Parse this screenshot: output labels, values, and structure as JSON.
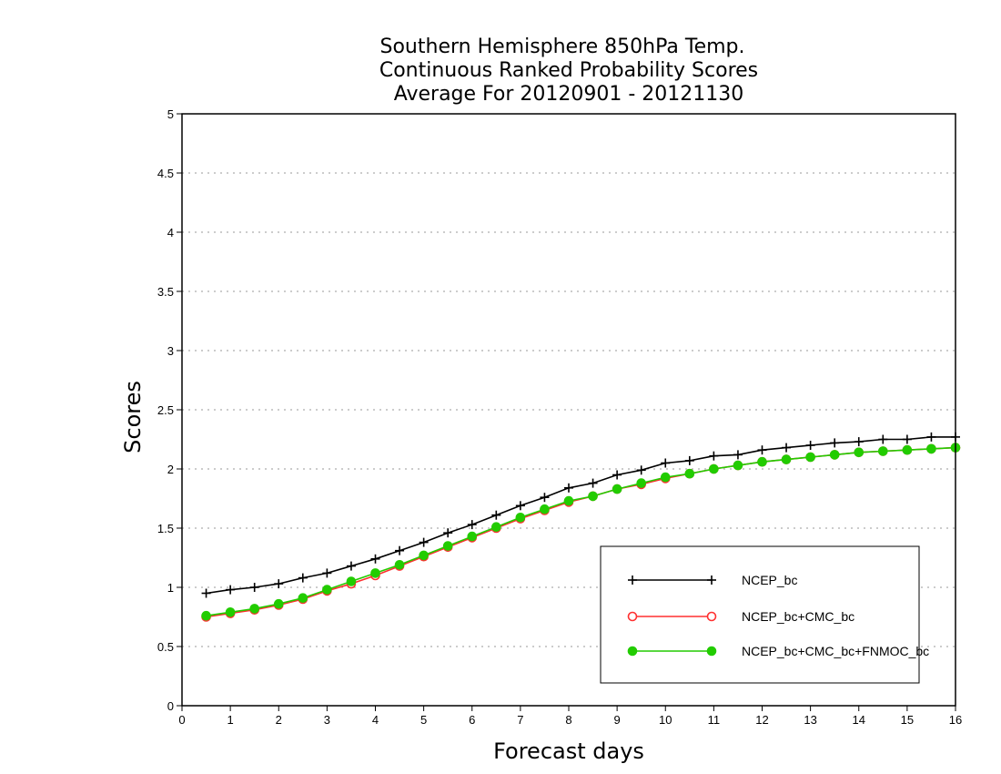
{
  "chart_data": {
    "type": "line",
    "title": [
      "Southern Hemisphere 850hPa Temp.",
      "Continuous Ranked Probability Scores",
      "Average For 20120901 - 20121130"
    ],
    "xlabel": "Forecast days",
    "ylabel": "Scores",
    "xlim": [
      0,
      16
    ],
    "ylim": [
      0,
      5
    ],
    "x_ticks": [
      "0",
      "1",
      "2",
      "3",
      "4",
      "5",
      "6",
      "7",
      "8",
      "9",
      "10",
      "11",
      "12",
      "13",
      "14",
      "15",
      "16"
    ],
    "y_ticks": [
      "0",
      "0.5",
      "1",
      "1.5",
      "2",
      "2.5",
      "3",
      "3.5",
      "4",
      "4.5",
      "5"
    ],
    "grid": "horizontal dotted",
    "legend_position": "bottom-right",
    "x": [
      0.5,
      1,
      1.5,
      2,
      2.5,
      3,
      3.5,
      4,
      4.5,
      5,
      5.5,
      6,
      6.5,
      7,
      7.5,
      8,
      8.5,
      9,
      9.5,
      10,
      10.5,
      11,
      11.5,
      12,
      12.5,
      13,
      13.5,
      14,
      14.5,
      15,
      15.5,
      16
    ],
    "series": [
      {
        "name": "NCEP_bc",
        "color": "#000000",
        "marker": "plus",
        "values": [
          0.95,
          0.98,
          1.0,
          1.03,
          1.08,
          1.12,
          1.18,
          1.24,
          1.31,
          1.38,
          1.46,
          1.53,
          1.61,
          1.69,
          1.76,
          1.84,
          1.88,
          1.95,
          1.99,
          2.05,
          2.07,
          2.11,
          2.12,
          2.16,
          2.18,
          2.2,
          2.22,
          2.23,
          2.25,
          2.25,
          2.27,
          2.27
        ]
      },
      {
        "name": "NCEP_bc+CMC_bc",
        "color": "#ff3030",
        "marker": "open-circle",
        "values": [
          0.75,
          0.78,
          0.81,
          0.85,
          0.9,
          0.97,
          1.03,
          1.1,
          1.18,
          1.26,
          1.34,
          1.42,
          1.5,
          1.58,
          1.65,
          1.72,
          1.77,
          1.83,
          1.87,
          1.92,
          1.96,
          2.0,
          2.03,
          2.06,
          2.08,
          2.1,
          2.12,
          2.14,
          2.15,
          2.16,
          2.17,
          2.18
        ]
      },
      {
        "name": "NCEP_bc+CMC_bc+FNMOC_bc",
        "color": "#22cc00",
        "marker": "filled-circle",
        "values": [
          0.76,
          0.79,
          0.82,
          0.86,
          0.91,
          0.98,
          1.05,
          1.12,
          1.19,
          1.27,
          1.35,
          1.43,
          1.51,
          1.59,
          1.66,
          1.73,
          1.77,
          1.83,
          1.88,
          1.93,
          1.96,
          2.0,
          2.03,
          2.06,
          2.08,
          2.1,
          2.12,
          2.14,
          2.15,
          2.16,
          2.17,
          2.18
        ]
      }
    ]
  }
}
